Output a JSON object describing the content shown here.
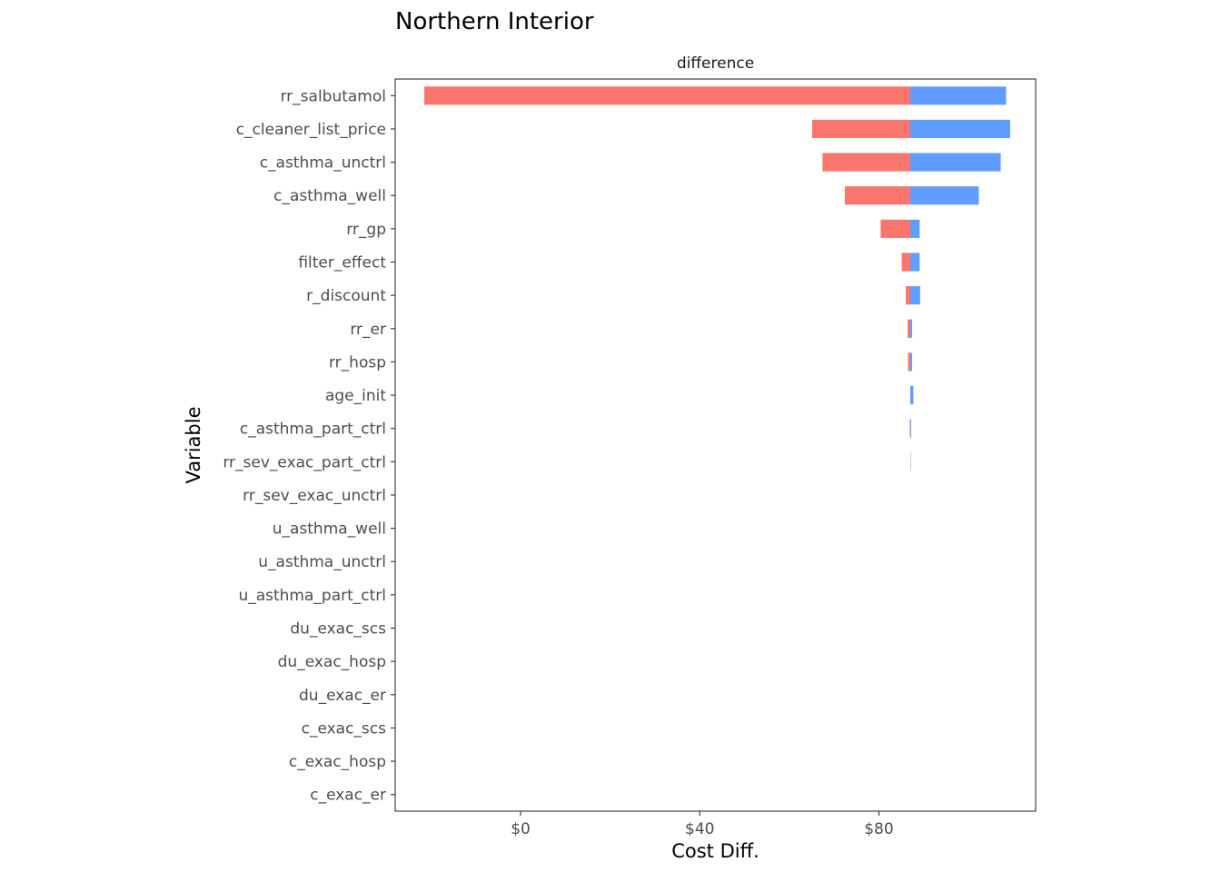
{
  "chart_data": {
    "type": "bar",
    "subtype": "tornado",
    "title": "Northern Interior",
    "facet_label": "difference",
    "xlabel": "Cost Diff.",
    "ylabel": "Variable",
    "baseline": 87,
    "xlim": [
      -28,
      115
    ],
    "xticks": [
      0,
      40,
      80
    ],
    "xtick_labels": [
      "$0",
      "$40",
      "$80"
    ],
    "grid": false,
    "legend": "none",
    "colors": {
      "low": "#F8766D",
      "high": "#619CFF"
    },
    "categories": [
      "rr_salbutamol",
      "c_cleaner_list_price",
      "c_asthma_unctrl",
      "c_asthma_well",
      "rr_gp",
      "filter_effect",
      "r_discount",
      "rr_er",
      "rr_hosp",
      "age_init",
      "c_asthma_part_ctrl",
      "rr_sev_exac_part_ctrl",
      "rr_sev_exac_unctrl",
      "u_asthma_well",
      "u_asthma_unctrl",
      "u_asthma_part_ctrl",
      "du_exac_scs",
      "du_exac_hosp",
      "du_exac_er",
      "c_exac_scs",
      "c_exac_hosp",
      "c_exac_er"
    ],
    "series": [
      {
        "key": "low",
        "values": [
          -21.5,
          65.1,
          67.4,
          72.4,
          80.4,
          85.1,
          86.0,
          86.4,
          86.5,
          87.0,
          86.9,
          87.0,
          87.0,
          87.0,
          87.0,
          87.0,
          87.0,
          87.0,
          87.0,
          87.0,
          87.0,
          87.0
        ]
      },
      {
        "key": "high",
        "values": [
          108.4,
          109.3,
          107.2,
          102.3,
          89.1,
          89.1,
          89.2,
          87.4,
          87.4,
          87.7,
          87.2,
          87.1,
          87.0,
          87.0,
          87.0,
          87.0,
          87.0,
          87.0,
          87.0,
          87.0,
          87.0,
          87.0
        ]
      }
    ]
  }
}
